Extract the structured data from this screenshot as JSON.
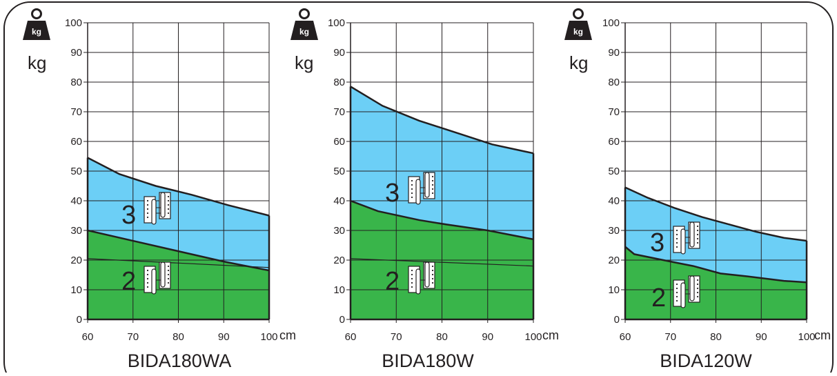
{
  "colors": {
    "hinge3_area": "#6ccff6",
    "hinge2_area": "#39b54a",
    "line": "#231f20",
    "frame": "#231f20"
  },
  "charts": [
    {
      "model": "BIDA180WA",
      "weight_icon": "weight-kg-icon",
      "icon_text": "kg",
      "y_unit": "kg",
      "x_unit": "cm",
      "chart_data": {
        "type": "area",
        "title": "BIDA180WA",
        "xlabel": "cm",
        "ylabel": "kg",
        "x_ticks": [
          "60",
          "70",
          "80",
          "90",
          "100"
        ],
        "y_ticks": [
          "0",
          "10",
          "20",
          "30",
          "40",
          "50",
          "60",
          "70",
          "80",
          "90",
          "100"
        ],
        "xlim": [
          60,
          100
        ],
        "ylim": [
          0,
          100
        ],
        "grid": true,
        "series": [
          {
            "name": "3",
            "hinge_icon": "three-hinges-icon",
            "x": [
              60,
              67,
              75,
              83,
              91,
              100
            ],
            "y": [
              54.5,
              49,
              45,
              42,
              38.5,
              35
            ]
          },
          {
            "name": "2",
            "hinge_icon": "two-hinges-icon",
            "x": [
              60,
              70,
              80,
              90,
              100
            ],
            "y": [
              30,
              26.5,
              23,
              19.5,
              16.5
            ]
          }
        ],
        "reference_line": {
          "x": [
            60,
            100
          ],
          "y": [
            20.5,
            17.5
          ]
        }
      }
    },
    {
      "model": "BIDA180W",
      "weight_icon": "weight-kg-icon",
      "icon_text": "kg",
      "y_unit": "kg",
      "x_unit": "cm",
      "chart_data": {
        "type": "area",
        "title": "BIDA180W",
        "xlabel": "cm",
        "ylabel": "kg",
        "x_ticks": [
          "60",
          "70",
          "80",
          "90",
          "100"
        ],
        "y_ticks": [
          "0",
          "10",
          "20",
          "30",
          "40",
          "50",
          "60",
          "70",
          "80",
          "90",
          "100"
        ],
        "xlim": [
          60,
          100
        ],
        "ylim": [
          0,
          100
        ],
        "grid": true,
        "series": [
          {
            "name": "3",
            "hinge_icon": "three-hinges-icon",
            "x": [
              60,
              67,
              75,
              83,
              91,
              100
            ],
            "y": [
              78.5,
              72,
              67,
              63,
              59,
              56
            ]
          },
          {
            "name": "2",
            "hinge_icon": "two-hinges-icon",
            "x": [
              60,
              66,
              75,
              81,
              90,
              100
            ],
            "y": [
              40,
              36.5,
              33.5,
              32,
              30,
              27
            ]
          }
        ],
        "reference_line": {
          "x": [
            60,
            100
          ],
          "y": [
            20.5,
            18
          ]
        }
      }
    },
    {
      "model": "BIDA120W",
      "weight_icon": "weight-kg-icon",
      "icon_text": "kg",
      "y_unit": "kg",
      "x_unit": "cm",
      "chart_data": {
        "type": "area",
        "title": "BIDA120W",
        "xlabel": "cm",
        "ylabel": "kg",
        "x_ticks": [
          "60",
          "70",
          "80",
          "90",
          "100"
        ],
        "y_ticks": [
          "0",
          "10",
          "20",
          "30",
          "40",
          "50",
          "60",
          "70",
          "80",
          "90",
          "100"
        ],
        "xlim": [
          60,
          100
        ],
        "ylim": [
          0,
          100
        ],
        "grid": true,
        "series": [
          {
            "name": "3",
            "hinge_icon": "three-hinges-icon",
            "x": [
              60,
              65,
              71,
              77,
              83,
              89,
              95,
              100
            ],
            "y": [
              44.5,
              41,
              37.5,
              34.5,
              32,
              29.5,
              27.5,
              26.5
            ]
          },
          {
            "name": "2",
            "hinge_icon": "two-hinges-icon",
            "x": [
              60,
              62,
              70,
              75,
              81,
              87,
              95,
              100
            ],
            "y": [
              24.5,
              22,
              19.5,
              18,
              15.5,
              14.5,
              13,
              12.5
            ]
          }
        ]
      }
    }
  ]
}
